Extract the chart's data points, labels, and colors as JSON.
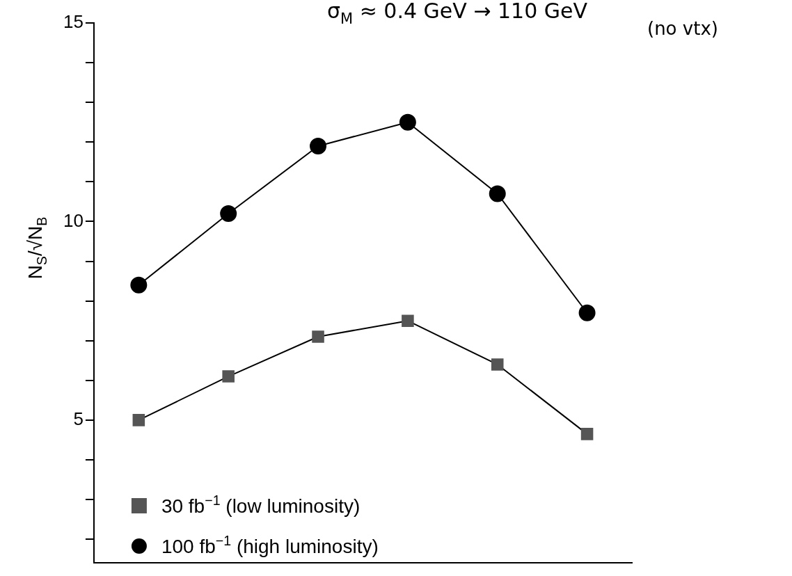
{
  "chart_data": {
    "type": "line",
    "ylabel": "N$_{S}$/√N$_{B}$",
    "categories": [
      null,
      null,
      null,
      null,
      null,
      null
    ],
    "series": [
      {
        "name": "30 fb$^{−1}$ (low luminosity)",
        "color": "#555555",
        "marker": "square",
        "values": [
          5.0,
          6.1,
          7.1,
          7.5,
          6.4,
          4.65
        ]
      },
      {
        "name": "100 fb$^{−1}$ (high luminosity)",
        "color": "#000000",
        "marker": "circle",
        "values": [
          8.4,
          10.2,
          11.9,
          12.5,
          10.7,
          7.7
        ]
      }
    ],
    "ylim": [
      1.4,
      15
    ],
    "yticks": [
      {
        "value": 2,
        "label": null
      },
      {
        "value": 3,
        "label": null
      },
      {
        "value": 4,
        "label": null
      },
      5,
      {
        "value": 6,
        "label": null
      },
      {
        "value": 7,
        "label": null
      },
      {
        "value": 8,
        "label": null
      },
      {
        "value": 9,
        "label": null
      },
      10,
      {
        "value": 11,
        "label": null
      },
      {
        "value": 12,
        "label": null
      },
      {
        "value": 13,
        "label": null
      },
      {
        "value": 14,
        "label": null
      },
      15
    ],
    "tick_labels": "y",
    "grid": false,
    "legend": "bottom left",
    "line_style": "solid",
    "annotations": [
      "σ$_{M}$ ≈ 0.4 GeV → 110 GeV",
      "(no vtx)"
    ]
  }
}
